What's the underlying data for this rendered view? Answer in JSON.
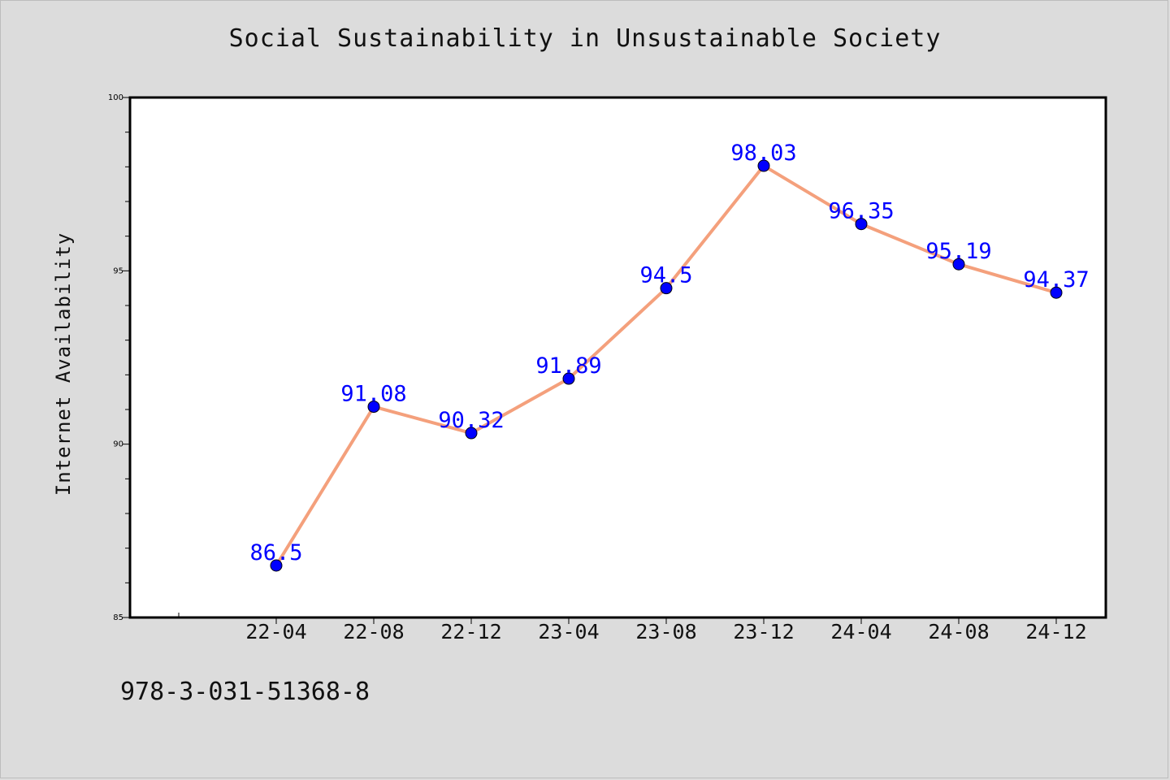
{
  "title": "Social Sustainability in Unsustainable Society",
  "isbn": "978-3-031-51368-8",
  "colors": {
    "background": "#dcdcdc",
    "plot_background": "#ffffff",
    "line": "#f4a07c",
    "marker": "#0000ff",
    "data_label": "#0000ff"
  },
  "chart_data": {
    "type": "line",
    "categories": [
      "22-04",
      "22-08",
      "22-12",
      "23-04",
      "23-08",
      "23-12",
      "24-04",
      "24-08",
      "24-12"
    ],
    "series": [
      {
        "values": [
          86.5,
          91.08,
          90.32,
          91.89,
          94.5,
          98.03,
          96.35,
          95.19,
          94.37
        ],
        "labels": [
          "86.5",
          "91.08",
          "90.32",
          "91.89",
          "94.5",
          "98.03",
          "96.35",
          "95.19",
          "94.37"
        ]
      }
    ],
    "xlabel": "",
    "ylabel": "Internet Availability",
    "ylim": [
      85,
      100
    ],
    "yticks": [
      85,
      90,
      95,
      100
    ],
    "grid": false,
    "legend": "none"
  }
}
